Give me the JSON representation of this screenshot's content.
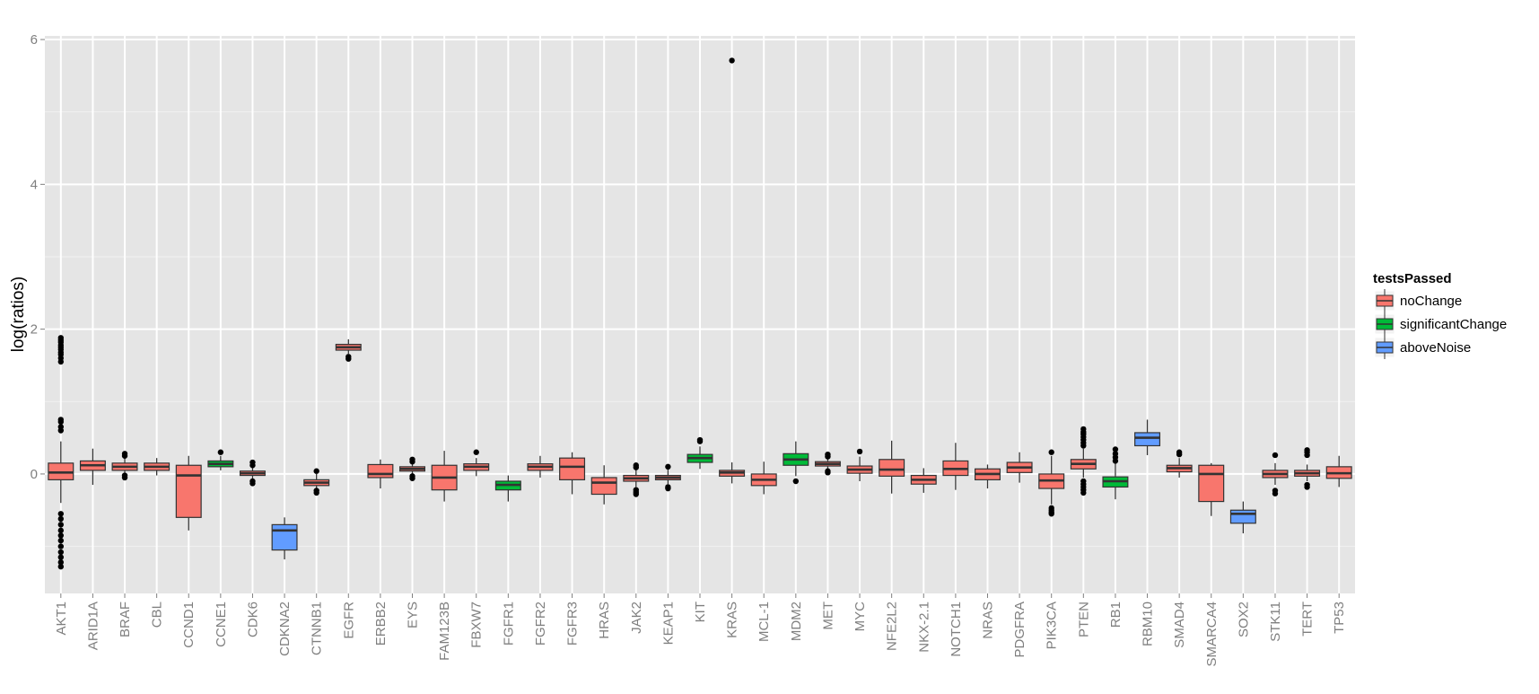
{
  "chart_data": {
    "type": "boxplot",
    "title": "",
    "xlabel": "",
    "ylabel": "log(ratios)",
    "ylim": [
      -1.65,
      6.05
    ],
    "yticks": [
      0,
      2,
      4,
      6
    ],
    "grid": true,
    "legend": {
      "title": "testsPassed",
      "position": "right",
      "entries": [
        {
          "name": "noChange",
          "color": "#F8766D"
        },
        {
          "name": "significantChange",
          "color": "#00BA38"
        },
        {
          "name": "aboveNoise",
          "color": "#619CFF"
        }
      ]
    },
    "boxes": [
      {
        "category": "AKT1",
        "group": "noChange",
        "q1": -0.08,
        "median": 0.02,
        "q3": 0.15,
        "whisker_low": -0.4,
        "whisker_high": 0.45,
        "outliers": [
          1.88,
          1.85,
          1.82,
          1.78,
          1.75,
          1.72,
          1.68,
          1.65,
          1.6,
          1.55,
          0.75,
          0.72,
          0.65,
          0.6,
          -0.55,
          -0.62,
          -0.7,
          -0.78,
          -0.85,
          -0.92,
          -1.0,
          -1.08,
          -1.15,
          -1.22,
          -1.28
        ]
      },
      {
        "category": "ARID1A",
        "group": "noChange",
        "q1": 0.05,
        "median": 0.12,
        "q3": 0.18,
        "whisker_low": -0.15,
        "whisker_high": 0.35,
        "outliers": []
      },
      {
        "category": "BRAF",
        "group": "noChange",
        "q1": 0.05,
        "median": 0.1,
        "q3": 0.15,
        "whisker_low": 0.0,
        "whisker_high": 0.22,
        "outliers": [
          0.28,
          0.25,
          -0.02,
          -0.05
        ]
      },
      {
        "category": "CBL",
        "group": "noChange",
        "q1": 0.05,
        "median": 0.1,
        "q3": 0.15,
        "whisker_low": -0.02,
        "whisker_high": 0.22,
        "outliers": []
      },
      {
        "category": "CCND1",
        "group": "noChange",
        "q1": -0.6,
        "median": -0.02,
        "q3": 0.12,
        "whisker_low": -0.78,
        "whisker_high": 0.25,
        "outliers": []
      },
      {
        "category": "CCNE1",
        "group": "significantChange",
        "q1": 0.1,
        "median": 0.14,
        "q3": 0.18,
        "whisker_low": 0.05,
        "whisker_high": 0.25,
        "outliers": [
          0.3
        ]
      },
      {
        "category": "CDK6",
        "group": "noChange",
        "q1": -0.02,
        "median": 0.01,
        "q3": 0.04,
        "whisker_low": -0.08,
        "whisker_high": 0.1,
        "outliers": [
          0.16,
          0.12,
          -0.1,
          -0.13
        ]
      },
      {
        "category": "CDKNA2",
        "group": "aboveNoise",
        "q1": -1.05,
        "median": -0.78,
        "q3": -0.7,
        "whisker_low": -1.18,
        "whisker_high": -0.6,
        "outliers": []
      },
      {
        "category": "CTNNB1",
        "group": "noChange",
        "q1": -0.16,
        "median": -0.12,
        "q3": -0.08,
        "whisker_low": -0.2,
        "whisker_high": 0.0,
        "outliers": [
          0.04,
          -0.23,
          -0.26
        ]
      },
      {
        "category": "EGFR",
        "group": "noChange",
        "q1": 1.71,
        "median": 1.75,
        "q3": 1.79,
        "whisker_low": 1.66,
        "whisker_high": 1.86,
        "outliers": [
          1.62,
          1.59
        ]
      },
      {
        "category": "ERBB2",
        "group": "noChange",
        "q1": -0.05,
        "median": 0.0,
        "q3": 0.13,
        "whisker_low": -0.2,
        "whisker_high": 0.2,
        "outliers": []
      },
      {
        "category": "EYS",
        "group": "noChange",
        "q1": 0.04,
        "median": 0.07,
        "q3": 0.1,
        "whisker_low": 0.0,
        "whisker_high": 0.15,
        "outliers": [
          0.2,
          0.17,
          -0.03,
          -0.06
        ]
      },
      {
        "category": "FAM123B",
        "group": "noChange",
        "q1": -0.22,
        "median": -0.05,
        "q3": 0.12,
        "whisker_low": -0.38,
        "whisker_high": 0.32,
        "outliers": []
      },
      {
        "category": "FBXW7",
        "group": "noChange",
        "q1": 0.05,
        "median": 0.1,
        "q3": 0.14,
        "whisker_low": -0.03,
        "whisker_high": 0.22,
        "outliers": [
          0.3
        ]
      },
      {
        "category": "FGFR1",
        "group": "significantChange",
        "q1": -0.22,
        "median": -0.15,
        "q3": -0.1,
        "whisker_low": -0.38,
        "whisker_high": -0.02,
        "outliers": []
      },
      {
        "category": "FGFR2",
        "group": "noChange",
        "q1": 0.05,
        "median": 0.1,
        "q3": 0.14,
        "whisker_low": -0.05,
        "whisker_high": 0.25,
        "outliers": []
      },
      {
        "category": "FGFR3",
        "group": "noChange",
        "q1": -0.08,
        "median": 0.1,
        "q3": 0.22,
        "whisker_low": -0.28,
        "whisker_high": 0.3,
        "outliers": []
      },
      {
        "category": "HRAS",
        "group": "noChange",
        "q1": -0.28,
        "median": -0.12,
        "q3": -0.05,
        "whisker_low": -0.42,
        "whisker_high": 0.12,
        "outliers": []
      },
      {
        "category": "JAK2",
        "group": "noChange",
        "q1": -0.1,
        "median": -0.06,
        "q3": -0.02,
        "whisker_low": -0.18,
        "whisker_high": 0.06,
        "outliers": [
          0.12,
          0.09,
          -0.22,
          -0.25,
          -0.28
        ]
      },
      {
        "category": "KEAP1",
        "group": "noChange",
        "q1": -0.08,
        "median": -0.05,
        "q3": -0.02,
        "whisker_low": -0.14,
        "whisker_high": 0.06,
        "outliers": [
          0.1,
          -0.18,
          -0.2
        ]
      },
      {
        "category": "KIT",
        "group": "significantChange",
        "q1": 0.16,
        "median": 0.22,
        "q3": 0.27,
        "whisker_low": 0.07,
        "whisker_high": 0.38,
        "outliers": [
          0.45,
          0.47
        ]
      },
      {
        "category": "KRAS",
        "group": "noChange",
        "q1": -0.03,
        "median": 0.02,
        "q3": 0.05,
        "whisker_low": -0.13,
        "whisker_high": 0.16,
        "outliers": [
          5.71
        ]
      },
      {
        "category": "MCL-1",
        "group": "noChange",
        "q1": -0.16,
        "median": -0.08,
        "q3": 0.0,
        "whisker_low": -0.28,
        "whisker_high": 0.17,
        "outliers": []
      },
      {
        "category": "MDM2",
        "group": "significantChange",
        "q1": 0.12,
        "median": 0.2,
        "q3": 0.28,
        "whisker_low": -0.03,
        "whisker_high": 0.45,
        "outliers": [
          -0.1
        ]
      },
      {
        "category": "MET",
        "group": "noChange",
        "q1": 0.11,
        "median": 0.14,
        "q3": 0.17,
        "whisker_low": 0.05,
        "whisker_high": 0.22,
        "outliers": [
          0.27,
          0.24,
          0.04,
          0.02
        ]
      },
      {
        "category": "MYC",
        "group": "noChange",
        "q1": 0.01,
        "median": 0.06,
        "q3": 0.11,
        "whisker_low": -0.1,
        "whisker_high": 0.24,
        "outliers": [
          0.31
        ]
      },
      {
        "category": "NFE2L2",
        "group": "noChange",
        "q1": -0.03,
        "median": 0.06,
        "q3": 0.2,
        "whisker_low": -0.27,
        "whisker_high": 0.46,
        "outliers": []
      },
      {
        "category": "NKX-2.1",
        "group": "noChange",
        "q1": -0.14,
        "median": -0.08,
        "q3": -0.02,
        "whisker_low": -0.26,
        "whisker_high": 0.08,
        "outliers": []
      },
      {
        "category": "NOTCH1",
        "group": "noChange",
        "q1": -0.02,
        "median": 0.07,
        "q3": 0.18,
        "whisker_low": -0.22,
        "whisker_high": 0.43,
        "outliers": []
      },
      {
        "category": "NRAS",
        "group": "noChange",
        "q1": -0.08,
        "median": 0.0,
        "q3": 0.07,
        "whisker_low": -0.2,
        "whisker_high": 0.13,
        "outliers": []
      },
      {
        "category": "PDGFRA",
        "group": "noChange",
        "q1": 0.02,
        "median": 0.09,
        "q3": 0.16,
        "whisker_low": -0.12,
        "whisker_high": 0.3,
        "outliers": []
      },
      {
        "category": "PIK3CA",
        "group": "noChange",
        "q1": -0.2,
        "median": -0.09,
        "q3": 0.0,
        "whisker_low": -0.42,
        "whisker_high": 0.25,
        "outliers": [
          0.3,
          -0.47,
          -0.5,
          -0.53,
          -0.55
        ]
      },
      {
        "category": "PTEN",
        "group": "noChange",
        "q1": 0.07,
        "median": 0.14,
        "q3": 0.2,
        "whisker_low": -0.05,
        "whisker_high": 0.35,
        "outliers": [
          0.62,
          0.58,
          0.55,
          0.51,
          0.47,
          0.43,
          0.39,
          -0.1,
          -0.14,
          -0.18,
          -0.22,
          -0.26
        ]
      },
      {
        "category": "RB1",
        "group": "significantChange",
        "q1": -0.18,
        "median": -0.1,
        "q3": -0.04,
        "whisker_low": -0.35,
        "whisker_high": 0.15,
        "outliers": [
          0.34,
          0.28,
          0.23,
          0.18
        ]
      },
      {
        "category": "RBM10",
        "group": "aboveNoise",
        "q1": 0.39,
        "median": 0.5,
        "q3": 0.57,
        "whisker_low": 0.26,
        "whisker_high": 0.75,
        "outliers": []
      },
      {
        "category": "SMAD4",
        "group": "noChange",
        "q1": 0.03,
        "median": 0.08,
        "q3": 0.12,
        "whisker_low": -0.05,
        "whisker_high": 0.22,
        "outliers": [
          0.3,
          0.27
        ]
      },
      {
        "category": "SMARCA4",
        "group": "noChange",
        "q1": -0.38,
        "median": 0.0,
        "q3": 0.12,
        "whisker_low": -0.58,
        "whisker_high": 0.15,
        "outliers": []
      },
      {
        "category": "SOX2",
        "group": "aboveNoise",
        "q1": -0.68,
        "median": -0.55,
        "q3": -0.5,
        "whisker_low": -0.82,
        "whisker_high": -0.38,
        "outliers": []
      },
      {
        "category": "STK11",
        "group": "noChange",
        "q1": -0.05,
        "median": 0.0,
        "q3": 0.05,
        "whisker_low": -0.15,
        "whisker_high": 0.15,
        "outliers": [
          0.26,
          -0.23,
          -0.27
        ]
      },
      {
        "category": "TERT",
        "group": "noChange",
        "q1": -0.03,
        "median": 0.01,
        "q3": 0.05,
        "whisker_low": -0.1,
        "whisker_high": 0.13,
        "outliers": [
          0.33,
          0.3,
          0.26,
          -0.15,
          -0.18
        ]
      },
      {
        "category": "TP53",
        "group": "noChange",
        "q1": -0.06,
        "median": 0.01,
        "q3": 0.1,
        "whisker_low": -0.18,
        "whisker_high": 0.25,
        "outliers": []
      }
    ]
  }
}
